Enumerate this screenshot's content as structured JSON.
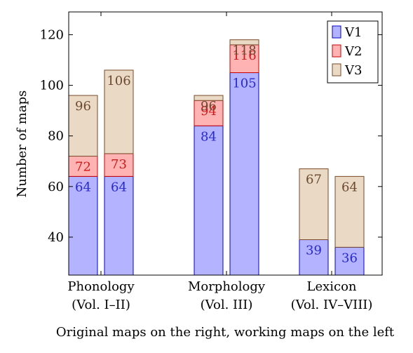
{
  "chart_data": {
    "type": "bar",
    "stacked": true,
    "title": "",
    "ylabel": "Number of maps",
    "xlabel": "Original maps on the right, working maps on the left",
    "ylim": [
      25,
      129
    ],
    "yticks": [
      40,
      60,
      80,
      100,
      120
    ],
    "grid": false,
    "legend_position": "top-right",
    "groups": [
      {
        "label_line1": "Phonology",
        "label_line2": "(Vol. I–II)"
      },
      {
        "label_line1": "Morphology",
        "label_line2": "(Vol. III)"
      },
      {
        "label_line1": "Lexicon",
        "label_line2": "(Vol. IV–VIII)"
      }
    ],
    "series": [
      {
        "name": "V1",
        "fill": "#b3b3ff",
        "stroke": "#0000cc",
        "label_color": "#2a2acc"
      },
      {
        "name": "V2",
        "fill": "#ffb3b3",
        "stroke": "#cc0000",
        "label_color": "#cc1a1a"
      },
      {
        "name": "V3",
        "fill": "#ead9c4",
        "stroke": "#7a4a2a",
        "label_color": "#6b4a30"
      }
    ],
    "bars": [
      {
        "group": 0,
        "side": "left",
        "cumulative": [
          64,
          72,
          96
        ]
      },
      {
        "group": 0,
        "side": "right",
        "cumulative": [
          64,
          73,
          106
        ]
      },
      {
        "group": 1,
        "side": "left",
        "cumulative": [
          84,
          94,
          96
        ]
      },
      {
        "group": 1,
        "side": "right",
        "cumulative": [
          105,
          116,
          118
        ]
      },
      {
        "group": 2,
        "side": "left",
        "cumulative": [
          39,
          null,
          67
        ]
      },
      {
        "group": 2,
        "side": "right",
        "cumulative": [
          36,
          null,
          64
        ]
      }
    ]
  }
}
